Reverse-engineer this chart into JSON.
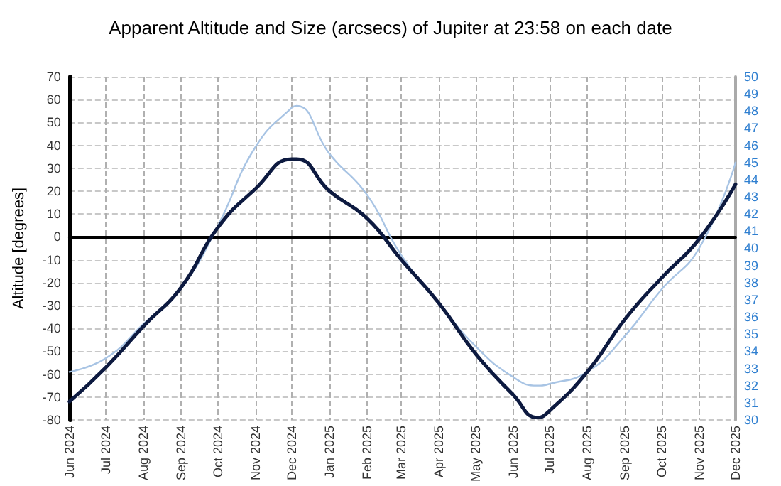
{
  "chart_data": {
    "type": "line",
    "title": "Apparent Altitude and Size (arcsecs) of Jupiter at 23:58 on each date",
    "ylabel": "Altitude [degrees]",
    "x": [
      "2024-06-01",
      "2024-07-01",
      "2024-08-01",
      "2024-09-01",
      "2024-10-01",
      "2024-11-01",
      "2024-12-01",
      "2024-12-05",
      "2025-01-01",
      "2025-02-01",
      "2025-03-01",
      "2025-04-01",
      "2025-05-01",
      "2025-06-01",
      "2025-06-21",
      "2025-07-01",
      "2025-08-01",
      "2025-09-01",
      "2025-10-01",
      "2025-11-01",
      "2025-12-01"
    ],
    "series": [
      {
        "color": "#0d1a40",
        "values": [
          -72,
          -57,
          -39,
          -22,
          4,
          21,
          34,
          34,
          20,
          8,
          -10,
          -29,
          -51,
          -69,
          -79,
          -76,
          -59,
          -36,
          -18,
          -1,
          23
        ]
      },
      {
        "color": "#a8c4e4",
        "axis": "y2",
        "values": [
          32.8,
          33.6,
          35.6,
          37.7,
          41.3,
          45.9,
          48.2,
          48.3,
          45.5,
          43.1,
          39.6,
          36.8,
          34.3,
          32.5,
          32.0,
          32.1,
          32.8,
          34.9,
          37.6,
          40.0,
          45.0
        ]
      }
    ],
    "xlim": [
      "2024-06-01",
      "2025-12-01"
    ],
    "xticks": [
      {
        "value": "2024-06-01",
        "label": "Jun 2024"
      },
      {
        "value": "2024-07-01",
        "label": "Jul 2024"
      },
      {
        "value": "2024-08-01",
        "label": "Aug 2024"
      },
      {
        "value": "2024-09-01",
        "label": "Sep 2024"
      },
      {
        "value": "2024-10-01",
        "label": "Oct 2024"
      },
      {
        "value": "2024-11-01",
        "label": "Nov 2024"
      },
      {
        "value": "2024-12-01",
        "label": "Dec 2024"
      },
      {
        "value": "2025-01-01",
        "label": "Jan 2025"
      },
      {
        "value": "2025-02-01",
        "label": "Feb 2025"
      },
      {
        "value": "2025-03-01",
        "label": "Mar 2025"
      },
      {
        "value": "2025-04-01",
        "label": "Apr 2025"
      },
      {
        "value": "2025-05-01",
        "label": "May 2025"
      },
      {
        "value": "2025-06-01",
        "label": "Jun 2025"
      },
      {
        "value": "2025-07-01",
        "label": "Jul 2025"
      },
      {
        "value": "2025-08-01",
        "label": "Aug 2025"
      },
      {
        "value": "2025-09-01",
        "label": "Sep 2025"
      },
      {
        "value": "2025-10-01",
        "label": "Oct 2025"
      },
      {
        "value": "2025-11-01",
        "label": "Nov 2025"
      },
      {
        "value": "2025-12-01",
        "label": "Dec 2025"
      }
    ],
    "ylim": [
      -80,
      70
    ],
    "yticks": [
      -80,
      -70,
      -60,
      -50,
      -40,
      -30,
      -20,
      -10,
      0,
      10,
      20,
      30,
      40,
      50,
      60,
      70
    ],
    "y2lim": [
      30,
      50
    ],
    "y2ticks": [
      30,
      31,
      32,
      33,
      34,
      35,
      36,
      37,
      38,
      39,
      40,
      41,
      42,
      43,
      44,
      45,
      46,
      47,
      48,
      49,
      50
    ],
    "grid": true,
    "marker": "none",
    "line_style": "solid"
  }
}
